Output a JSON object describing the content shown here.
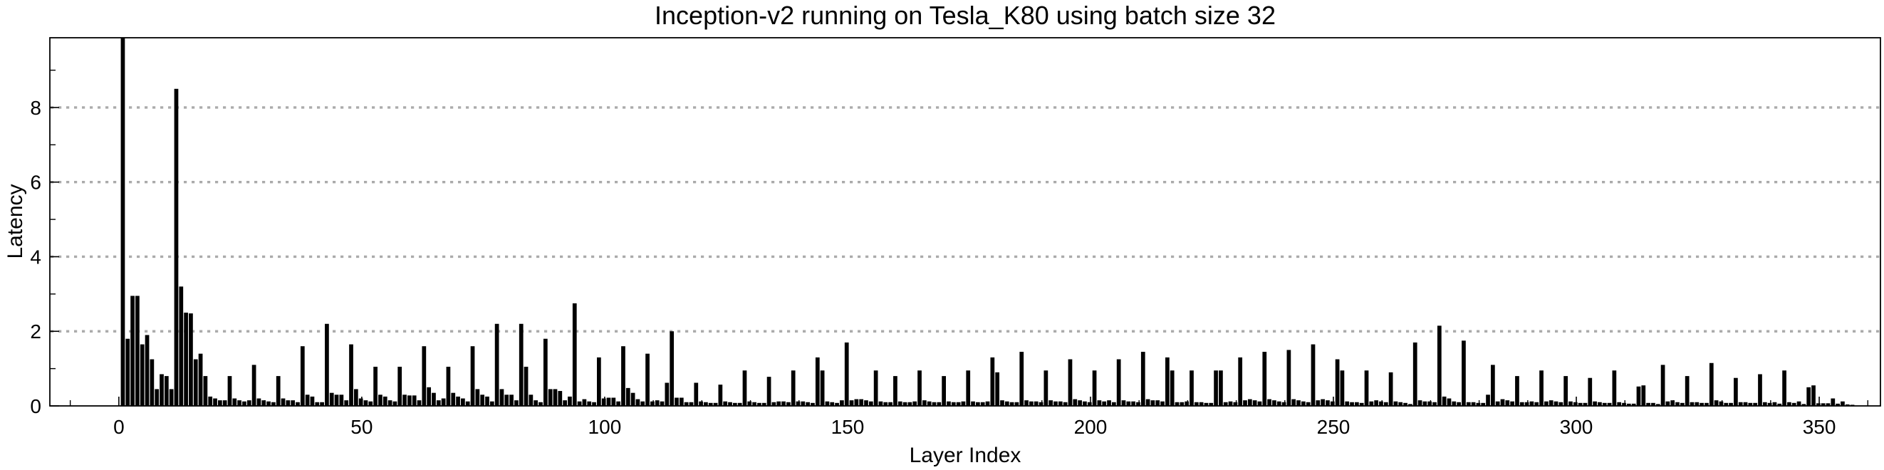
{
  "chart_data": {
    "type": "bar",
    "title": "Inception-v2 running on Tesla_K80 using batch size 32",
    "xlabel": "Layer Index",
    "ylabel": "Latency",
    "x_ticks": [
      0,
      50,
      100,
      150,
      200,
      250,
      300,
      350
    ],
    "x_tick_labels": [
      "0",
      "50",
      "100",
      "150",
      "200",
      "250",
      "300",
      "350"
    ],
    "y_ticks": [
      0,
      2,
      4,
      6,
      8
    ],
    "y_tick_labels": [
      "0",
      "2",
      "4",
      "6",
      "8"
    ],
    "y_minor_ticks": [
      1,
      3,
      5,
      7,
      9
    ],
    "x_minor_tick_step": 10,
    "xlim": [
      -14.2,
      362.6
    ],
    "ylim": [
      0,
      9.87
    ],
    "first_bar_clipped_at_top": true,
    "grid": "horizontal-dotted",
    "grid_values": [
      2,
      4,
      6,
      8
    ],
    "bar_color": "#000000",
    "grid_color": "#ababab",
    "axis_color": "#000000",
    "categories_note": "x = layer index 0..356",
    "values": [
      9.87,
      1.8,
      2.95,
      2.95,
      1.65,
      1.9,
      1.25,
      0.45,
      0.85,
      0.8,
      0.45,
      8.5,
      3.2,
      2.5,
      2.48,
      1.25,
      1.4,
      0.8,
      0.25,
      0.2,
      0.15,
      0.15,
      0.8,
      0.2,
      0.15,
      0.12,
      0.15,
      1.1,
      0.2,
      0.15,
      0.12,
      0.1,
      0.8,
      0.2,
      0.15,
      0.15,
      0.1,
      1.6,
      0.3,
      0.25,
      0.1,
      0.1,
      2.2,
      0.35,
      0.3,
      0.3,
      0.15,
      1.65,
      0.45,
      0.2,
      0.15,
      0.12,
      1.05,
      0.3,
      0.25,
      0.15,
      0.12,
      1.05,
      0.3,
      0.28,
      0.28,
      0.15,
      1.6,
      0.5,
      0.35,
      0.15,
      0.2,
      1.05,
      0.35,
      0.25,
      0.2,
      0.12,
      1.6,
      0.45,
      0.3,
      0.25,
      0.12,
      2.2,
      0.45,
      0.3,
      0.3,
      0.15,
      2.2,
      1.05,
      0.3,
      0.15,
      0.1,
      1.8,
      0.45,
      0.45,
      0.4,
      0.15,
      0.25,
      2.75,
      0.12,
      0.18,
      0.12,
      0.1,
      1.3,
      0.2,
      0.22,
      0.22,
      0.12,
      1.6,
      0.48,
      0.35,
      0.18,
      0.12,
      1.4,
      0.12,
      0.15,
      0.12,
      0.62,
      2.0,
      0.22,
      0.22,
      0.1,
      0.1,
      0.62,
      0.12,
      0.1,
      0.08,
      0.08,
      0.57,
      0.12,
      0.1,
      0.08,
      0.08,
      0.95,
      0.12,
      0.1,
      0.08,
      0.08,
      0.78,
      0.1,
      0.12,
      0.12,
      0.1,
      0.95,
      0.12,
      0.12,
      0.1,
      0.08,
      1.3,
      0.95,
      0.12,
      0.1,
      0.08,
      0.15,
      1.7,
      0.15,
      0.18,
      0.18,
      0.15,
      0.12,
      0.95,
      0.12,
      0.1,
      0.1,
      0.8,
      0.12,
      0.1,
      0.1,
      0.12,
      0.95,
      0.15,
      0.12,
      0.1,
      0.1,
      0.8,
      0.12,
      0.1,
      0.1,
      0.12,
      0.95,
      0.12,
      0.1,
      0.1,
      0.12,
      1.3,
      0.9,
      0.15,
      0.12,
      0.1,
      0.1,
      1.45,
      0.15,
      0.12,
      0.12,
      0.1,
      0.95,
      0.15,
      0.12,
      0.12,
      0.1,
      1.25,
      0.18,
      0.15,
      0.12,
      0.1,
      0.95,
      0.15,
      0.12,
      0.15,
      0.1,
      1.25,
      0.15,
      0.12,
      0.12,
      0.1,
      1.45,
      0.18,
      0.15,
      0.15,
      0.12,
      1.3,
      0.95,
      0.1,
      0.1,
      0.12,
      0.95,
      0.1,
      0.1,
      0.08,
      0.08,
      0.95,
      0.95,
      0.1,
      0.12,
      0.1,
      1.3,
      0.15,
      0.18,
      0.15,
      0.12,
      1.45,
      0.18,
      0.15,
      0.12,
      0.1,
      1.5,
      0.18,
      0.15,
      0.12,
      0.1,
      1.65,
      0.15,
      0.18,
      0.15,
      0.12,
      1.25,
      0.95,
      0.12,
      0.1,
      0.1,
      0.08,
      0.95,
      0.12,
      0.15,
      0.12,
      0.1,
      0.9,
      0.12,
      0.1,
      0.08,
      0.05,
      1.7,
      0.15,
      0.12,
      0.12,
      0.1,
      2.15,
      0.25,
      0.2,
      0.12,
      0.1,
      1.75,
      0.1,
      0.1,
      0.08,
      0.08,
      0.3,
      1.1,
      0.12,
      0.18,
      0.15,
      0.12,
      0.8,
      0.1,
      0.1,
      0.12,
      0.1,
      0.95,
      0.12,
      0.15,
      0.12,
      0.1,
      0.8,
      0.12,
      0.1,
      0.08,
      0.08,
      0.75,
      0.12,
      0.1,
      0.08,
      0.08,
      0.95,
      0.1,
      0.08,
      0.06,
      0.06,
      0.52,
      0.55,
      0.08,
      0.08,
      0.05,
      1.1,
      0.12,
      0.15,
      0.1,
      0.08,
      0.8,
      0.1,
      0.1,
      0.08,
      0.08,
      1.15,
      0.15,
      0.12,
      0.08,
      0.08,
      0.75,
      0.1,
      0.1,
      0.08,
      0.08,
      0.85,
      0.1,
      0.08,
      0.1,
      0.06,
      0.95,
      0.1,
      0.08,
      0.12,
      0.05,
      0.5,
      0.55,
      0.07,
      0.07,
      0.07,
      0.2,
      0.06,
      0.12,
      0.04,
      0.03
    ]
  }
}
